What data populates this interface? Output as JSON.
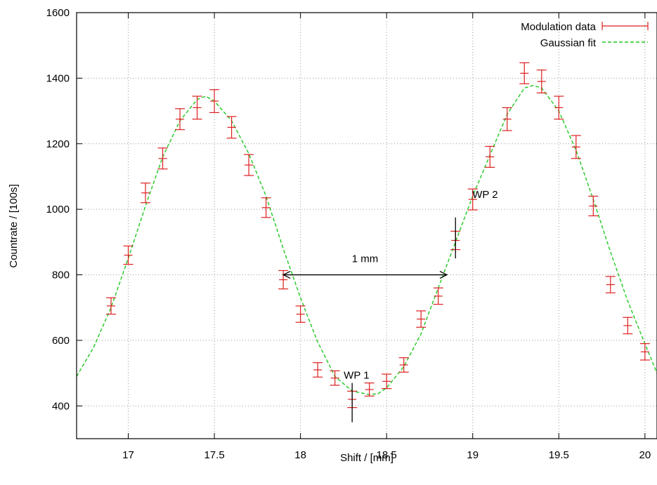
{
  "chart_data": {
    "type": "scatter",
    "xlabel": "Shift / [mm]",
    "ylabel": "Countrate / [100s]",
    "xlim": [
      16.7,
      20.07
    ],
    "ylim": [
      300,
      1600
    ],
    "xticks": [
      17,
      17.5,
      18,
      18.5,
      19,
      19.5,
      20
    ],
    "xtick_labels": [
      "17",
      "17.5",
      "18",
      "18.5",
      "19",
      "19.5",
      "20"
    ],
    "yticks": [
      400,
      600,
      800,
      1000,
      1200,
      1400,
      1600
    ],
    "ytick_labels": [
      "400",
      "600",
      "800",
      "1000",
      "1200",
      "1400",
      "1600"
    ],
    "grid": true,
    "legend": {
      "placement": "top-right",
      "entries": [
        {
          "label": "Modulation data",
          "color": "#dd1f1f",
          "style": "errorbars"
        },
        {
          "label": "Gaussian fit",
          "color": "#1fc81f",
          "style": "dashed"
        }
      ]
    },
    "series": [
      {
        "name": "Modulation data",
        "color": "#dd1f1f",
        "x": [
          16.9,
          17.0,
          17.1,
          17.2,
          17.3,
          17.4,
          17.5,
          17.6,
          17.7,
          17.8,
          17.9,
          18.0,
          18.1,
          18.2,
          18.3,
          18.4,
          18.5,
          18.6,
          18.7,
          18.8,
          18.9,
          19.0,
          19.1,
          19.2,
          19.3,
          19.4,
          19.5,
          19.6,
          19.7,
          19.8,
          19.9,
          20.0
        ],
        "y": [
          705,
          860,
          1050,
          1155,
          1275,
          1310,
          1330,
          1250,
          1135,
          1005,
          785,
          680,
          510,
          485,
          420,
          450,
          475,
          525,
          665,
          735,
          905,
          1030,
          1160,
          1275,
          1415,
          1390,
          1310,
          1190,
          1010,
          770,
          645,
          565
        ],
        "err": [
          25,
          28,
          30,
          32,
          32,
          35,
          35,
          33,
          32,
          30,
          28,
          25,
          22,
          22,
          25,
          20,
          22,
          22,
          25,
          25,
          28,
          32,
          32,
          35,
          32,
          35,
          35,
          35,
          30,
          25,
          25,
          25
        ]
      },
      {
        "name": "Gaussian fit",
        "color": "#1fc81f",
        "x": [
          16.7,
          16.8,
          16.9,
          17.0,
          17.1,
          17.2,
          17.3,
          17.4,
          17.45,
          17.5,
          17.6,
          17.7,
          17.8,
          17.9,
          18.0,
          18.1,
          18.2,
          18.3,
          18.4,
          18.45,
          18.5,
          18.6,
          18.7,
          18.8,
          18.9,
          19.0,
          19.1,
          19.2,
          19.3,
          19.35,
          19.4,
          19.5,
          19.6,
          19.7,
          19.8,
          19.9,
          20.0,
          20.07
        ],
        "y": [
          490,
          580,
          700,
          850,
          1010,
          1160,
          1270,
          1335,
          1345,
          1330,
          1270,
          1170,
          1040,
          880,
          730,
          595,
          490,
          445,
          435,
          437,
          455,
          520,
          620,
          760,
          900,
          1040,
          1165,
          1290,
          1370,
          1378,
          1370,
          1300,
          1180,
          1030,
          870,
          720,
          590,
          500
        ]
      }
    ],
    "annotations": [
      {
        "text": "WP 1",
        "x": 18.3,
        "y": 420,
        "marker_y": [
          350,
          470
        ]
      },
      {
        "text": "WP 2",
        "x": 18.9,
        "y": 905,
        "marker_y": [
          850,
          975
        ]
      },
      {
        "text": "1 mm",
        "arrow_x": [
          17.9,
          18.85
        ],
        "y": 800
      }
    ]
  }
}
